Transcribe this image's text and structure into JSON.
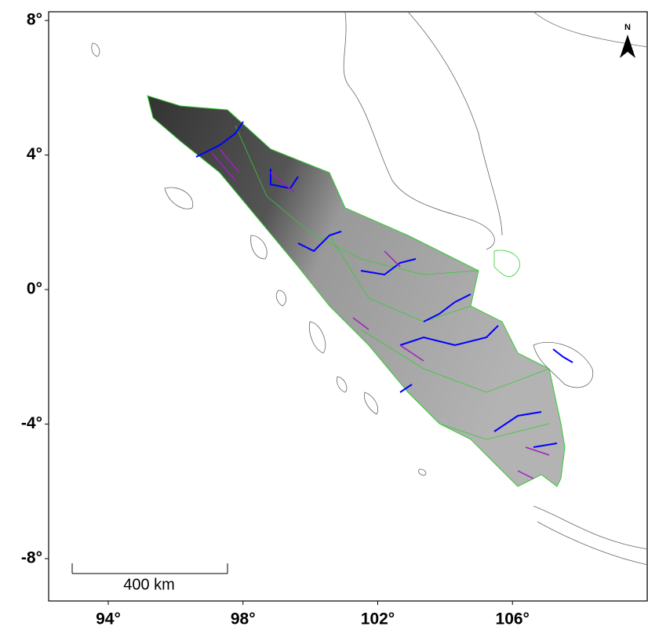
{
  "map": {
    "xlim": [
      92.23,
      110
    ],
    "ylim": [
      -9.26,
      8.26
    ],
    "xticks": [
      {
        "value": 94,
        "label": "94°"
      },
      {
        "value": 98,
        "label": "98°"
      },
      {
        "value": 102,
        "label": "102°"
      },
      {
        "value": 106,
        "label": "106°"
      }
    ],
    "yticks": [
      {
        "value": 8,
        "label": "8°"
      },
      {
        "value": 4,
        "label": "4°"
      },
      {
        "value": 0,
        "label": "0°"
      },
      {
        "value": -4,
        "label": "-4°"
      },
      {
        "value": -8,
        "label": "-8°"
      }
    ],
    "scale_bar": {
      "label": "400 km"
    },
    "north_arrow": {
      "label": "N"
    }
  }
}
